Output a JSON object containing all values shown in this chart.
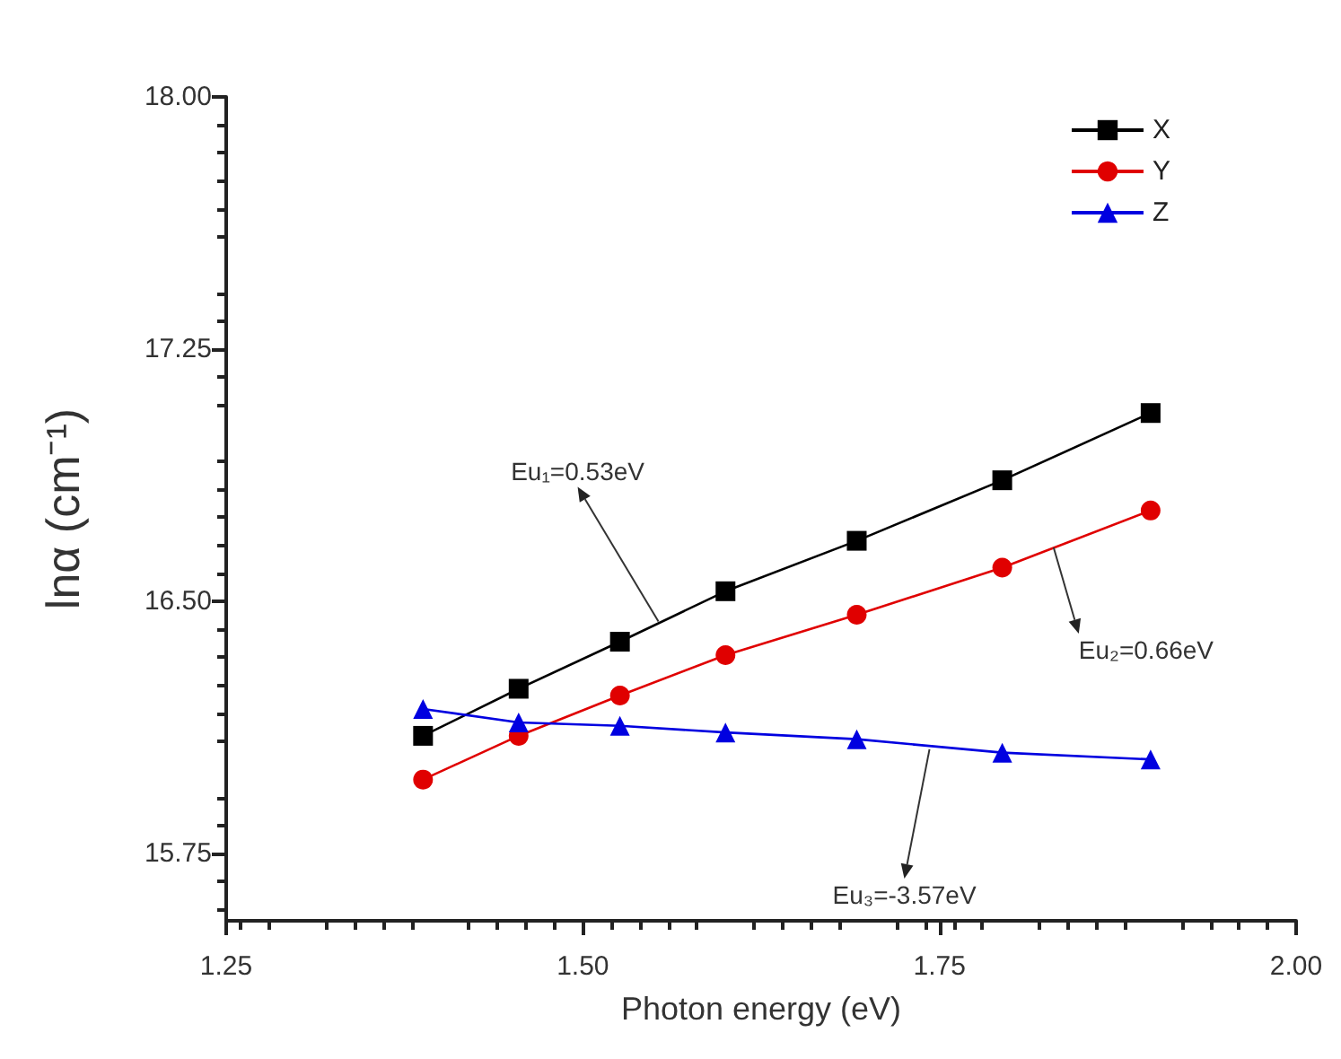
{
  "chart_data": {
    "type": "line",
    "xlabel": "Photon energy (eV)",
    "ylabel": "lnα (cm⁻¹)",
    "x": [
      1.388,
      1.455,
      1.526,
      1.6,
      1.692,
      1.794,
      1.898
    ],
    "series": [
      {
        "name": "X",
        "color": "#000000",
        "marker": "square",
        "values": [
          16.1,
          16.24,
          16.38,
          16.53,
          16.68,
          16.86,
          17.06
        ]
      },
      {
        "name": "Y",
        "color": "#e00000",
        "marker": "circle",
        "values": [
          15.97,
          16.1,
          16.22,
          16.34,
          16.46,
          16.6,
          16.77
        ]
      },
      {
        "name": "Z",
        "color": "#0000e0",
        "marker": "triangle",
        "values": [
          16.18,
          16.14,
          16.13,
          16.11,
          16.09,
          16.05,
          16.03
        ]
      }
    ],
    "xlim": [
      1.25,
      2.0
    ],
    "xticks": [
      1.25,
      {
        "value": 1.5,
        "label": "1.50"
      },
      1.75,
      {
        "value": 2.0,
        "label": "2.00"
      }
    ],
    "ylim": [
      15.55,
      18.0
    ],
    "yticks": [
      15.75,
      {
        "value": 16.5,
        "label": "16.50"
      },
      17.25,
      {
        "value": 18.0,
        "label": "18.00"
      }
    ],
    "grid": false,
    "legend": "top right",
    "line_style": "solid",
    "annotations": [
      {
        "text": "Eu₁=0.53eV",
        "x": 1.553,
        "y": 16.44
      },
      {
        "text": "Eu₂=0.66eV",
        "x": 1.83,
        "y": 16.66
      },
      {
        "text": "Eu₃=-3.57eV",
        "x": 1.743,
        "y": 16.06
      }
    ]
  }
}
